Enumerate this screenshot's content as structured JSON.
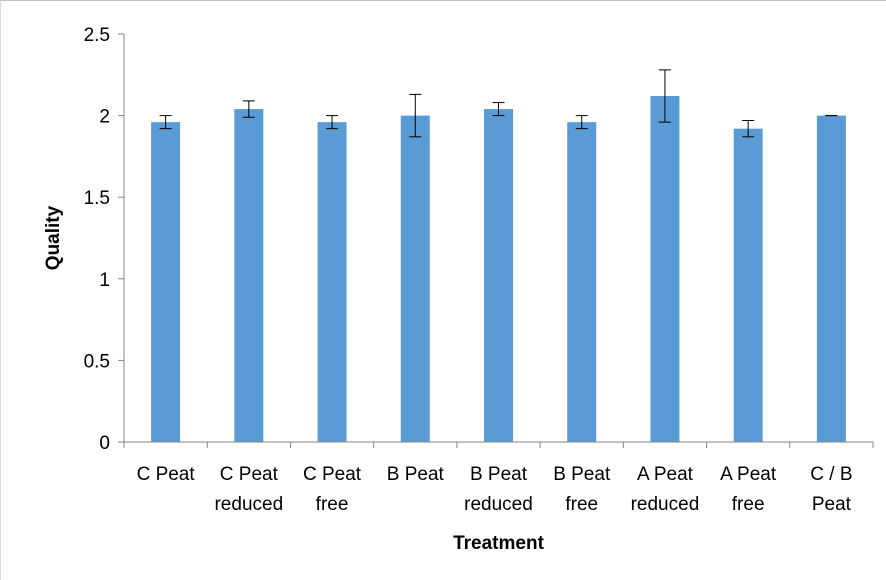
{
  "chart_data": {
    "type": "bar",
    "title": "",
    "xlabel": "Treatment",
    "ylabel": "Quality",
    "ylim": [
      0,
      2.5
    ],
    "yticks": [
      0,
      0.5,
      1,
      1.5,
      2,
      2.5
    ],
    "ytick_labels": [
      "0",
      "0.5",
      "1",
      "1.5",
      "2",
      "2.5"
    ],
    "grid": false,
    "legend": "none",
    "categories": [
      [
        "C Peat"
      ],
      [
        "C Peat",
        "reduced"
      ],
      [
        "C Peat",
        "free"
      ],
      [
        "B Peat"
      ],
      [
        "B Peat",
        "reduced"
      ],
      [
        "B Peat",
        "free"
      ],
      [
        "A Peat",
        "reduced"
      ],
      [
        "A Peat",
        "free"
      ],
      [
        "C / B",
        "Peat"
      ]
    ],
    "series": [
      {
        "values": [
          1.96,
          2.04,
          1.96,
          2.0,
          2.04,
          1.96,
          2.12,
          1.92,
          2.0
        ],
        "error": [
          0.04,
          0.05,
          0.04,
          0.13,
          0.04,
          0.04,
          0.16,
          0.05,
          0.0
        ]
      }
    ],
    "colors": {
      "bar": "#5b9bd5",
      "axis": "#868686",
      "error_bar": "#000000"
    }
  }
}
